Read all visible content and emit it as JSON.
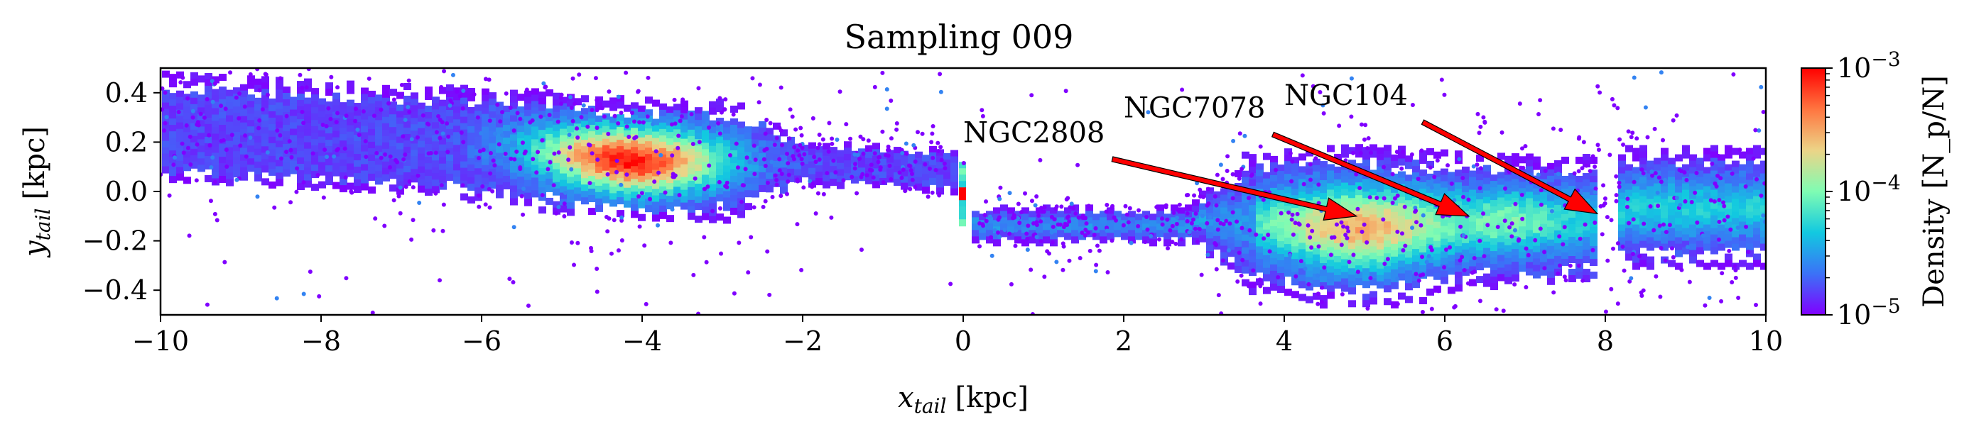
{
  "chart_data": {
    "type": "heatmap",
    "title": "Sampling 009",
    "xlabel": {
      "main": "x",
      "sub": "tail",
      "unit": "[kpc]"
    },
    "ylabel": {
      "main": "y",
      "sub": "tail",
      "unit": "[kpc]"
    },
    "xlim": [
      -10,
      10
    ],
    "ylim": [
      -0.5,
      0.5
    ],
    "xticks": [
      -10,
      -8,
      -6,
      -4,
      -2,
      0,
      2,
      4,
      6,
      8,
      10
    ],
    "xtick_labels": [
      "−10",
      "−8",
      "−6",
      "−4",
      "−2",
      "0",
      "2",
      "4",
      "6",
      "8",
      "10"
    ],
    "yticks": [
      -0.4,
      -0.2,
      0.0,
      0.2,
      0.4
    ],
    "ytick_labels": [
      "−0.4",
      "−0.2",
      "0.0",
      "0.2",
      "0.4"
    ],
    "grid": false,
    "colorbar": {
      "label": "Density",
      "unit_expr": "[N_p/N]",
      "scale": "log",
      "range": [
        1e-05,
        0.001
      ],
      "ticks": [
        0.001,
        0.0001,
        1e-05
      ],
      "tick_labels": [
        {
          "base": "10",
          "exp": "−3"
        },
        {
          "base": "10",
          "exp": "−4"
        },
        {
          "base": "10",
          "exp": "−5"
        }
      ],
      "colormap": "rainbow",
      "colors": [
        "#8000ff",
        "#3b72f7",
        "#12c9e0",
        "#7ffcb3",
        "#ecd487",
        "#ff7540",
        "#ff0000"
      ]
    },
    "density_regions": [
      {
        "name": "leading tail",
        "x_range": [
          -10,
          -0.1
        ],
        "y_center_at_x_min": 0.28,
        "y_center_at_x_max": 0.1,
        "peak_x": -4.2,
        "peak_y": 0.08,
        "peak_density": 0.0009
      },
      {
        "name": "trailing tail",
        "x_range": [
          0,
          10
        ],
        "peak_x": 4.9,
        "peak_y": -0.12,
        "peak_density": 0.0003
      },
      {
        "name": "progenitor",
        "x": 0.0,
        "y": 0.0,
        "peak_density": 0.001
      }
    ],
    "annotations": [
      {
        "text": "NGC2808",
        "text_x": 0.0,
        "text_y": 0.2,
        "arrow_to": [
          4.9,
          -0.1
        ],
        "color": "#ff0000"
      },
      {
        "text": "NGC7078",
        "text_x": 2.0,
        "text_y": 0.3,
        "arrow_to": [
          6.3,
          -0.1
        ],
        "color": "#ff0000"
      },
      {
        "text": "NGC104",
        "text_x": 4.0,
        "text_y": 0.35,
        "arrow_to": [
          7.9,
          -0.09
        ],
        "color": "#ff0000"
      }
    ]
  }
}
